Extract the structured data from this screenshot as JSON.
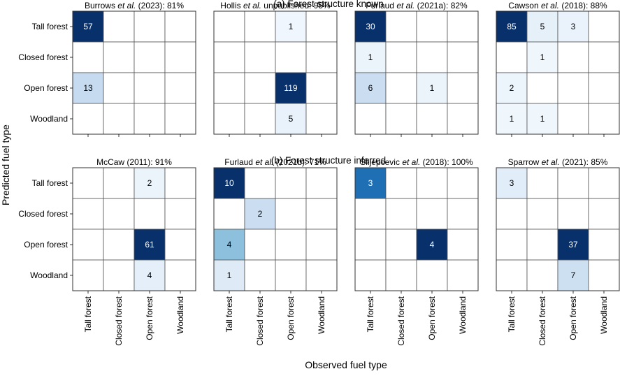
{
  "chart_data": {
    "type": "heatmap",
    "xlabel": "Observed fuel type",
    "ylabel": "Predicted fuel type",
    "categories": [
      "Tall forest",
      "Closed forest",
      "Open forest",
      "Woodland"
    ],
    "rows": [
      {
        "label": "(a) Forest structure known",
        "panels": [
          {
            "title": "Burrows et al. (2023): 81%",
            "vmax": 57,
            "cells": [
              [
                57,
                null,
                null,
                null
              ],
              [
                null,
                null,
                null,
                null
              ],
              [
                13,
                null,
                null,
                null
              ],
              [
                null,
                null,
                null,
                null
              ]
            ]
          },
          {
            "title": "Hollis et al. unpublished: 95%",
            "vmax": 119,
            "cells": [
              [
                null,
                null,
                1,
                null
              ],
              [
                null,
                null,
                null,
                null
              ],
              [
                null,
                null,
                119,
                null
              ],
              [
                null,
                null,
                5,
                null
              ]
            ]
          },
          {
            "title": "Furlaud et al. (2021a): 82%",
            "vmax": 30,
            "cells": [
              [
                30,
                null,
                null,
                null
              ],
              [
                1,
                null,
                null,
                null
              ],
              [
                6,
                null,
                1,
                null
              ],
              [
                null,
                null,
                null,
                null
              ]
            ]
          },
          {
            "title": "Cawson et al. (2018): 88%",
            "vmax": 85,
            "cells": [
              [
                85,
                5,
                3,
                null
              ],
              [
                null,
                1,
                null,
                null
              ],
              [
                2,
                null,
                null,
                null
              ],
              [
                1,
                1,
                null,
                null
              ]
            ]
          }
        ]
      },
      {
        "label": "(b) Forest structure inferred",
        "panels": [
          {
            "title": "McCaw (2011): 91%",
            "vmax": 61,
            "cells": [
              [
                null,
                null,
                2,
                null
              ],
              [
                null,
                null,
                null,
                null
              ],
              [
                null,
                null,
                61,
                null
              ],
              [
                null,
                null,
                4,
                null
              ]
            ]
          },
          {
            "title": "Furlaud et al. (2021b): 71%",
            "vmax": 10,
            "cells": [
              [
                10,
                null,
                null,
                null
              ],
              [
                null,
                2,
                null,
                null
              ],
              [
                4,
                null,
                null,
                null
              ],
              [
                1,
                null,
                null,
                null
              ]
            ]
          },
          {
            "title": "Slijepcevic et al. (2018): 100%",
            "vmax": 4,
            "cells": [
              [
                3,
                null,
                null,
                null
              ],
              [
                null,
                null,
                null,
                null
              ],
              [
                null,
                null,
                4,
                null
              ],
              [
                null,
                null,
                null,
                null
              ]
            ]
          },
          {
            "title": "Sparrow et al. (2021): 85%",
            "vmax": 37,
            "cells": [
              [
                3,
                null,
                null,
                null
              ],
              [
                null,
                null,
                null,
                null
              ],
              [
                null,
                null,
                37,
                null
              ],
              [
                null,
                null,
                7,
                null
              ]
            ]
          }
        ]
      }
    ]
  }
}
